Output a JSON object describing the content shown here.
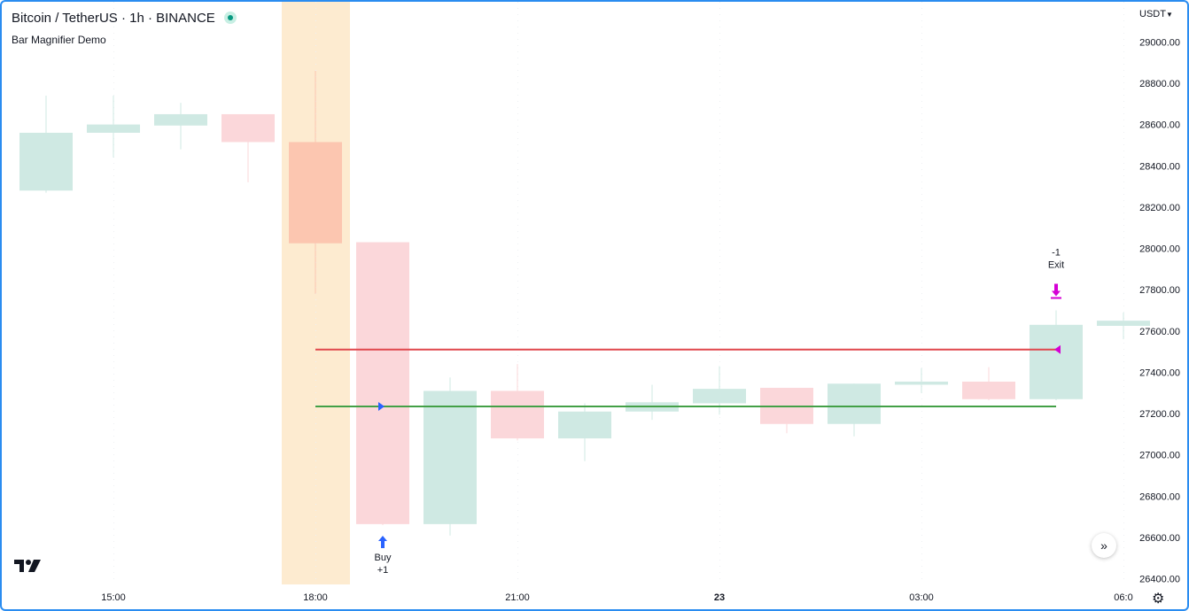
{
  "header": {
    "symbol": "Bitcoin / TetherUS · 1h · BINANCE",
    "indicator": "Bar Magnifier Demo",
    "currency": "USDT"
  },
  "colors": {
    "up_fill": "#cfe9e3",
    "down_fill": "#fbd7da",
    "highlight_fill": "#fdebd0",
    "highlight_candle": "#fcc6b0",
    "upper_line": "#e0474c",
    "lower_line": "#43a047",
    "buy": "#2962ff",
    "exit": "#d500d5"
  },
  "chart_data": {
    "type": "candlestick",
    "y_axis_ticks": [
      "29000.00",
      "28800.00",
      "28600.00",
      "28400.00",
      "28200.00",
      "28000.00",
      "27800.00",
      "27600.00",
      "27400.00",
      "27200.00",
      "27000.00",
      "26800.00",
      "26600.00",
      "26400.00"
    ],
    "ylim": [
      26390,
      29040
    ],
    "x_axis_ticks": [
      {
        "label": "15:00",
        "index": 1
      },
      {
        "label": "18:00",
        "index": 4
      },
      {
        "label": "21:00",
        "index": 7
      },
      {
        "label": "23",
        "index": 10,
        "bold": true
      },
      {
        "label": "03:00",
        "index": 13
      },
      {
        "label": "06:0",
        "index": 16
      }
    ],
    "candles": [
      {
        "o": 28280,
        "h": 28740,
        "l": 28270,
        "c": 28560
      },
      {
        "o": 28560,
        "h": 28740,
        "l": 28440,
        "c": 28600
      },
      {
        "o": 28595,
        "h": 28705,
        "l": 28480,
        "c": 28650
      },
      {
        "o": 28650,
        "h": 28650,
        "l": 28320,
        "c": 28515
      },
      {
        "o": 28515,
        "h": 28860,
        "l": 27780,
        "c": 28025,
        "highlight": true
      },
      {
        "o": 28030,
        "h": 28030,
        "l": 26660,
        "c": 26665
      },
      {
        "o": 26665,
        "h": 27375,
        "l": 26610,
        "c": 27310
      },
      {
        "o": 27310,
        "h": 27440,
        "l": 27070,
        "c": 27080
      },
      {
        "o": 27080,
        "h": 27250,
        "l": 26970,
        "c": 27210
      },
      {
        "o": 27210,
        "h": 27340,
        "l": 27170,
        "c": 27255
      },
      {
        "o": 27250,
        "h": 27430,
        "l": 27195,
        "c": 27320
      },
      {
        "o": 27325,
        "h": 27325,
        "l": 27105,
        "c": 27150
      },
      {
        "o": 27150,
        "h": 27345,
        "l": 27090,
        "c": 27345
      },
      {
        "o": 27340,
        "h": 27420,
        "l": 27300,
        "c": 27355
      },
      {
        "o": 27355,
        "h": 27425,
        "l": 27265,
        "c": 27270
      },
      {
        "o": 27270,
        "h": 27700,
        "l": 27265,
        "c": 27630
      },
      {
        "o": 27625,
        "h": 27690,
        "l": 27560,
        "c": 27650
      }
    ],
    "highlight_bar_index": 4,
    "lines": [
      {
        "name": "upper",
        "value": 27510,
        "from_index": 4,
        "to_index": 15
      },
      {
        "name": "lower",
        "value": 27235,
        "from_index": 4,
        "to_index": 15
      }
    ],
    "trades": [
      {
        "type": "buy",
        "index": 5,
        "price": 27235,
        "label": "Buy",
        "qty": "+1"
      },
      {
        "type": "exit",
        "index": 15,
        "price": 27510,
        "label": "Exit",
        "qty": "-1"
      }
    ]
  }
}
